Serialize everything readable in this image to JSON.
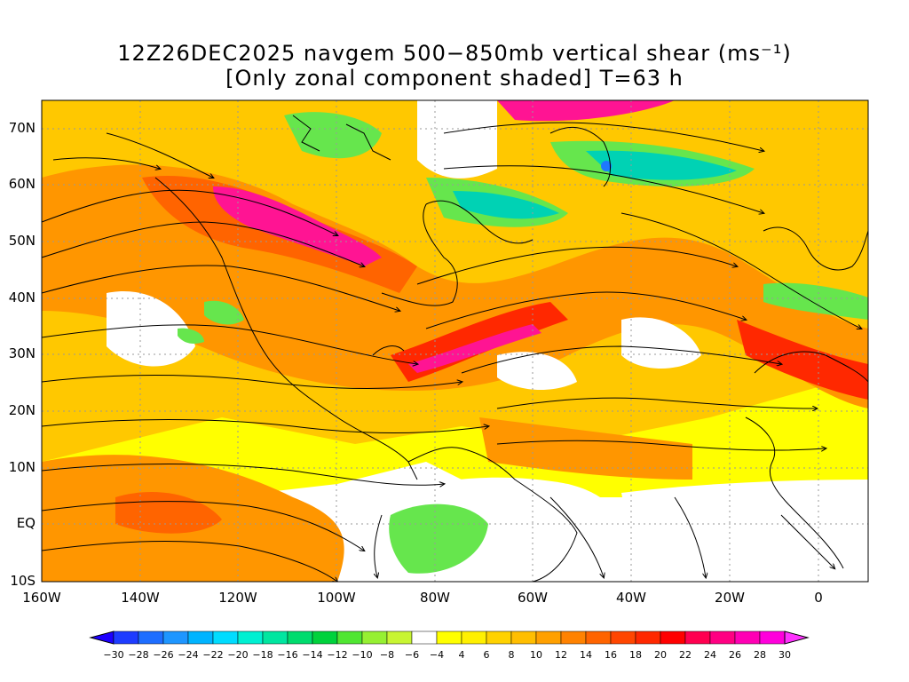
{
  "title_line1": "12Z26DEC2025 navgem 500−850mb vertical shear (ms⁻¹)",
  "title_line2": "[Only zonal component shaded] T=63 h",
  "lat_labels": [
    "70N",
    "60N",
    "50N",
    "40N",
    "30N",
    "20N",
    "10N",
    "EQ",
    "10S"
  ],
  "lon_labels": [
    "160W",
    "140W",
    "120W",
    "100W",
    "80W",
    "60W",
    "40W",
    "20W",
    "0"
  ],
  "colorbar": {
    "labels": [
      "-30",
      "-28",
      "-26",
      "-24",
      "-22",
      "-20",
      "-18",
      "-16",
      "-14",
      "-12",
      "-10",
      "-8",
      "-6",
      "-4",
      "4",
      "6",
      "8",
      "10",
      "12",
      "14",
      "16",
      "18",
      "20",
      "22",
      "24",
      "26",
      "28",
      "30"
    ],
    "colors": [
      "#1e00ff",
      "#1e3cff",
      "#1e6eff",
      "#1e96ff",
      "#00b4ff",
      "#00dcff",
      "#00f0d2",
      "#00e6a0",
      "#00dc6e",
      "#00d23c",
      "#50e632",
      "#96f032",
      "#c8f532",
      "#ffffff",
      "#ffff00",
      "#fff000",
      "#ffd200",
      "#ffbe00",
      "#ffa000",
      "#ff8200",
      "#ff6400",
      "#ff4600",
      "#ff2800",
      "#ff0000",
      "#ff0050",
      "#ff0082",
      "#ff00b4",
      "#ff00dc",
      "#ff32ff"
    ]
  },
  "map_colors": {
    "white": "#ffffff",
    "yellow": "#ffff00",
    "gold": "#ffc800",
    "orange": "#ff9600",
    "dark_orange": "#ff6400",
    "red": "#ff2800",
    "magenta": "#ff1493",
    "green": "#66e64d",
    "teal": "#00d2b4",
    "blue": "#1e78ff"
  }
}
